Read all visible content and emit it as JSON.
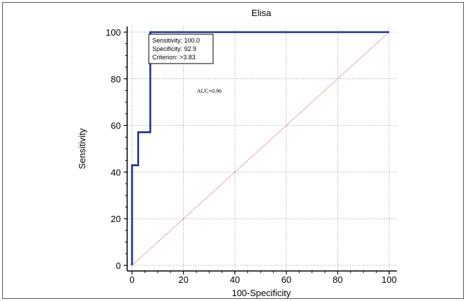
{
  "chart_data": {
    "type": "line",
    "title": "Elisa",
    "xlabel": "100-Specificity",
    "ylabel": "Sensitivity",
    "xlim": [
      0,
      100
    ],
    "ylim": [
      0,
      100
    ],
    "xticks": [
      "0",
      "20",
      "40",
      "60",
      "80",
      "100"
    ],
    "yticks": [
      "0",
      "20",
      "40",
      "60",
      "80",
      "100"
    ],
    "grid": true,
    "series": [
      {
        "color": "#1f2f8f",
        "x": [
          0,
          0,
          2.4,
          2.4,
          7.1,
          7.1,
          100
        ],
        "y": [
          0,
          42.9,
          42.9,
          57.1,
          57.1,
          100,
          100
        ]
      },
      {
        "color": "#c0392b",
        "style": "dotted",
        "x": [
          0,
          100
        ],
        "y": [
          0,
          100
        ]
      }
    ],
    "annotations": [
      {
        "text": "AUC=0.96",
        "x": 30,
        "y": 74
      }
    ],
    "info_box": {
      "lines": [
        "Sensitivity: 100.0",
        "Specificity: 92.9",
        "Criterion: >3.83"
      ]
    }
  }
}
